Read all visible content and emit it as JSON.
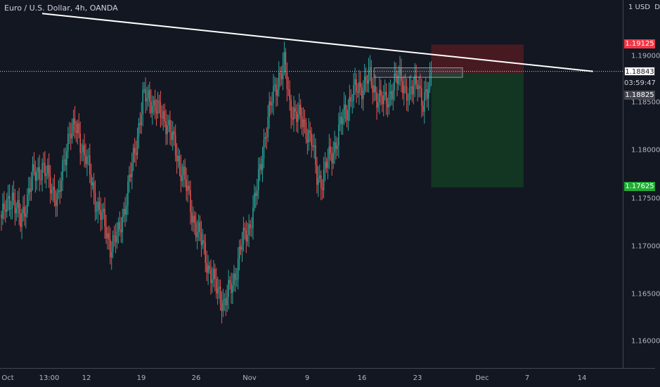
{
  "header": {
    "title": "Euro / U.S. Dollar, 4h, OANDA"
  },
  "price_axis": {
    "currency": "1 USD  D",
    "ticks": [
      "1.19000",
      "1.18500",
      "1.18000",
      "1.17500",
      "1.17000",
      "1.16500",
      "1.16000"
    ]
  },
  "price_labels": {
    "stop_loss": "1.19125",
    "last_price": "1.18843",
    "countdown": "03:59:47",
    "entry": "1.18825",
    "take_profit": "1.17625"
  },
  "time_axis": {
    "ticks": [
      "Oct",
      "13:00",
      "12",
      "19",
      "26",
      "Nov",
      "9",
      "16",
      "23",
      "Dec",
      "7",
      "14"
    ]
  },
  "colors": {
    "background": "#131722",
    "up_candle": "#26a69a",
    "down_candle": "#ef5350",
    "trendline": "#ffffff",
    "stop_zone": "#4a1a22",
    "target_zone": "#123822"
  },
  "chart_data": {
    "type": "candlestick",
    "title": "Euro / U.S. Dollar, 4h, OANDA",
    "ylim": [
      1.158,
      1.1945
    ],
    "y_scale": "linear",
    "grid": false,
    "x_ticks": [
      "Oct",
      "13:00",
      "12",
      "19",
      "26",
      "Nov",
      "9",
      "16",
      "23",
      "Dec",
      "7",
      "14"
    ],
    "y_ticks": [
      1.19,
      1.185,
      1.18,
      1.175,
      1.17,
      1.165,
      1.16
    ],
    "anchors": [
      {
        "i": 0,
        "p": 1.173
      },
      {
        "i": 8,
        "p": 1.1755
      },
      {
        "i": 14,
        "p": 1.1725
      },
      {
        "i": 22,
        "p": 1.177
      },
      {
        "i": 30,
        "p": 1.1785
      },
      {
        "i": 36,
        "p": 1.1765
      },
      {
        "i": 42,
        "p": 1.175
      },
      {
        "i": 50,
        "p": 1.1825
      },
      {
        "i": 56,
        "p": 1.182
      },
      {
        "i": 62,
        "p": 1.1795
      },
      {
        "i": 68,
        "p": 1.1755
      },
      {
        "i": 74,
        "p": 1.173
      },
      {
        "i": 80,
        "p": 1.1702
      },
      {
        "i": 86,
        "p": 1.1712
      },
      {
        "i": 92,
        "p": 1.1752
      },
      {
        "i": 98,
        "p": 1.18
      },
      {
        "i": 104,
        "p": 1.1855
      },
      {
        "i": 110,
        "p": 1.1855
      },
      {
        "i": 116,
        "p": 1.184
      },
      {
        "i": 122,
        "p": 1.1832
      },
      {
        "i": 128,
        "p": 1.18
      },
      {
        "i": 134,
        "p": 1.1775
      },
      {
        "i": 140,
        "p": 1.1735
      },
      {
        "i": 146,
        "p": 1.171
      },
      {
        "i": 152,
        "p": 1.168
      },
      {
        "i": 158,
        "p": 1.1655
      },
      {
        "i": 164,
        "p": 1.1642
      },
      {
        "i": 170,
        "p": 1.166
      },
      {
        "i": 176,
        "p": 1.17
      },
      {
        "i": 182,
        "p": 1.172
      },
      {
        "i": 188,
        "p": 1.176
      },
      {
        "i": 194,
        "p": 1.182
      },
      {
        "i": 200,
        "p": 1.186
      },
      {
        "i": 204,
        "p": 1.188
      },
      {
        "i": 208,
        "p": 1.189
      },
      {
        "i": 212,
        "p": 1.185
      },
      {
        "i": 218,
        "p": 1.1835
      },
      {
        "i": 222,
        "p": 1.1832
      },
      {
        "i": 228,
        "p": 1.181
      },
      {
        "i": 232,
        "p": 1.1775
      },
      {
        "i": 236,
        "p": 1.177
      },
      {
        "i": 240,
        "p": 1.179
      },
      {
        "i": 246,
        "p": 1.181
      },
      {
        "i": 252,
        "p": 1.184
      },
      {
        "i": 258,
        "p": 1.186
      },
      {
        "i": 264,
        "p": 1.1868
      },
      {
        "i": 270,
        "p": 1.1878
      },
      {
        "i": 276,
        "p": 1.186
      },
      {
        "i": 282,
        "p": 1.185
      },
      {
        "i": 288,
        "p": 1.187
      },
      {
        "i": 294,
        "p": 1.1878
      },
      {
        "i": 300,
        "p": 1.1855
      },
      {
        "i": 306,
        "p": 1.188
      },
      {
        "i": 310,
        "p": 1.1845
      },
      {
        "i": 313,
        "p": 1.186
      },
      {
        "i": 316,
        "p": 1.1883
      }
    ],
    "trendline": [
      {
        "i": 30,
        "p": 1.1945
      },
      {
        "i": 435,
        "p": 1.18843
      }
    ],
    "position": {
      "type": "short",
      "entry": 1.18825,
      "stop_loss": 1.19125,
      "take_profit": 1.17625,
      "start_i": 316,
      "end_i": 384
    },
    "last_price": 1.18843,
    "entry_box": {
      "i1": 274,
      "i2": 339,
      "p_top": 1.1888,
      "p_bottom": 1.1878
    }
  }
}
